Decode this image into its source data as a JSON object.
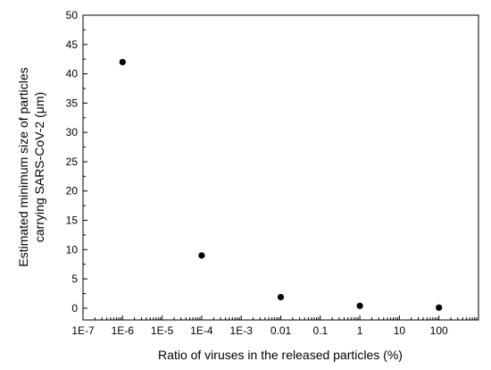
{
  "chart_data": {
    "type": "scatter",
    "xlabel": "Ratio of viruses in the released particles (%)",
    "ylabel_line1": "Estimated minimum size of particles",
    "ylabel_line2": "carrying SARS-CoV-2 (μm)",
    "x_scale": "log",
    "xlim": [
      1e-07,
      1000
    ],
    "ylim": [
      -2,
      50
    ],
    "x_ticks": [
      {
        "value": 1e-07,
        "label": "1E-7"
      },
      {
        "value": 1e-06,
        "label": "1E-6"
      },
      {
        "value": 1e-05,
        "label": "1E-5"
      },
      {
        "value": 0.0001,
        "label": "1E-4"
      },
      {
        "value": 0.001,
        "label": "1E-3"
      },
      {
        "value": 0.01,
        "label": "0.01"
      },
      {
        "value": 0.1,
        "label": "0.1"
      },
      {
        "value": 1,
        "label": "1"
      },
      {
        "value": 10,
        "label": "10"
      },
      {
        "value": 100,
        "label": "100"
      }
    ],
    "y_ticks": [
      {
        "value": 0,
        "label": "0"
      },
      {
        "value": 5,
        "label": "5"
      },
      {
        "value": 10,
        "label": "10"
      },
      {
        "value": 15,
        "label": "15"
      },
      {
        "value": 20,
        "label": "20"
      },
      {
        "value": 25,
        "label": "25"
      },
      {
        "value": 30,
        "label": "30"
      },
      {
        "value": 35,
        "label": "35"
      },
      {
        "value": 40,
        "label": "40"
      },
      {
        "value": 45,
        "label": "45"
      },
      {
        "value": 50,
        "label": "50"
      }
    ],
    "points": [
      {
        "x": 1e-06,
        "y": 42
      },
      {
        "x": 0.0001,
        "y": 9
      },
      {
        "x": 0.01,
        "y": 1.9
      },
      {
        "x": 1,
        "y": 0.4
      },
      {
        "x": 100,
        "y": 0.1
      }
    ],
    "grid": false,
    "marker_color": "#000000"
  }
}
